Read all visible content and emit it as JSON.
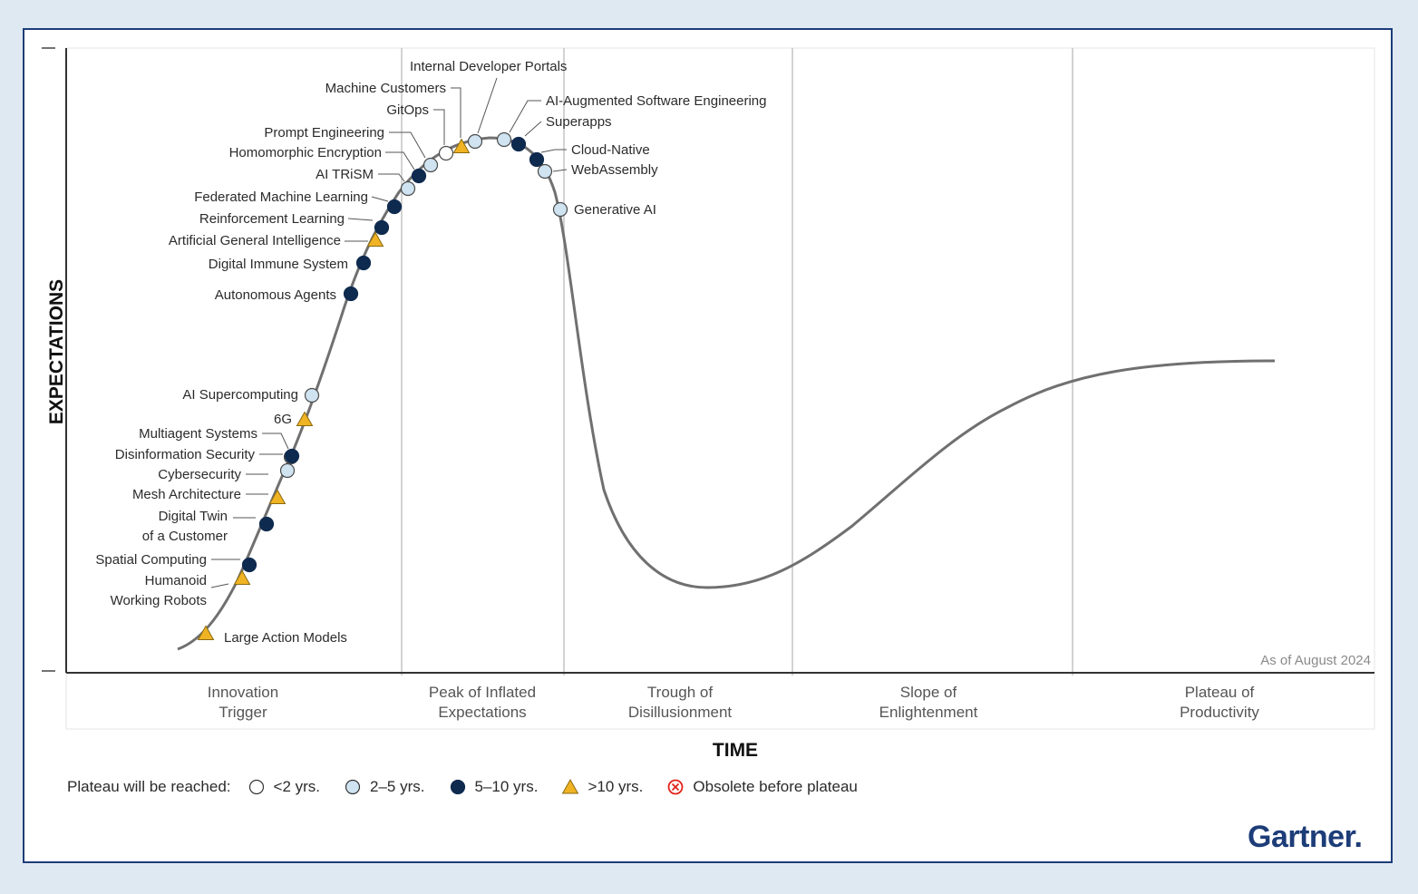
{
  "chart_data": {
    "type": "scatter",
    "title": "",
    "xlabel": "TIME",
    "ylabel": "EXPECTATIONS",
    "as_of": "As of August 2024",
    "phases": [
      {
        "line1": "Innovation",
        "line2": "Trigger"
      },
      {
        "line1": "Peak of Inflated",
        "line2": "Expectations"
      },
      {
        "line1": "Trough of",
        "line2": "Disillusionment"
      },
      {
        "line1": "Slope of",
        "line2": "Enlightenment"
      },
      {
        "line1": "Plateau of",
        "line2": "Productivity"
      }
    ],
    "legend": {
      "title": "Plateau will be reached:",
      "items": [
        {
          "key": "lt2",
          "label": "<2 yrs."
        },
        {
          "key": "2to5",
          "label": "2–5 yrs."
        },
        {
          "key": "5to10",
          "label": "5–10 yrs."
        },
        {
          "key": "gt10",
          "label": ">10 yrs."
        },
        {
          "key": "obsolete",
          "label": "Obsolete before plateau"
        }
      ]
    },
    "technologies": [
      {
        "name": "Large Action Models",
        "category": "gt10"
      },
      {
        "name": "Humanoid\nWorking Robots",
        "category": "gt10"
      },
      {
        "name": "Spatial Computing",
        "category": "5to10"
      },
      {
        "name": "Digital Twin\nof a Customer",
        "category": "5to10"
      },
      {
        "name": "Mesh Architecture",
        "category": "gt10"
      },
      {
        "name": "Cybersecurity",
        "category": "2to5"
      },
      {
        "name": "Disinformation Security",
        "category": "2to5"
      },
      {
        "name": "Multiagent Systems",
        "category": "5to10"
      },
      {
        "name": "6G",
        "category": "gt10"
      },
      {
        "name": "AI Supercomputing",
        "category": "2to5"
      },
      {
        "name": "Autonomous Agents",
        "category": "5to10"
      },
      {
        "name": "Digital Immune System",
        "category": "5to10"
      },
      {
        "name": "Artificial General Intelligence",
        "category": "gt10"
      },
      {
        "name": "Reinforcement Learning",
        "category": "5to10"
      },
      {
        "name": "Federated Machine Learning",
        "category": "5to10"
      },
      {
        "name": "AI TRiSM",
        "category": "2to5"
      },
      {
        "name": "Homomorphic Encryption",
        "category": "5to10"
      },
      {
        "name": "Prompt Engineering",
        "category": "2to5"
      },
      {
        "name": "GitOps",
        "category": "lt2"
      },
      {
        "name": "Machine Customers",
        "category": "gt10"
      },
      {
        "name": "Internal Developer Portals",
        "category": "2to5"
      },
      {
        "name": "AI-Augmented Software Engineering",
        "category": "2to5"
      },
      {
        "name": "Superapps",
        "category": "5to10"
      },
      {
        "name": "Cloud-Native",
        "category": "5to10"
      },
      {
        "name": "WebAssembly",
        "category": "2to5"
      },
      {
        "name": "Generative AI",
        "category": "2to5"
      }
    ]
  },
  "colors": {
    "lt2": "#ffffff",
    "2to5": "#cfe3f0",
    "5to10": "#0f2a4f",
    "gt10": "#f0b323",
    "obsolete": "#e2231a",
    "curve": "#707070",
    "brand": "#1d3d78"
  },
  "brand": {
    "logo": "Gartner."
  }
}
